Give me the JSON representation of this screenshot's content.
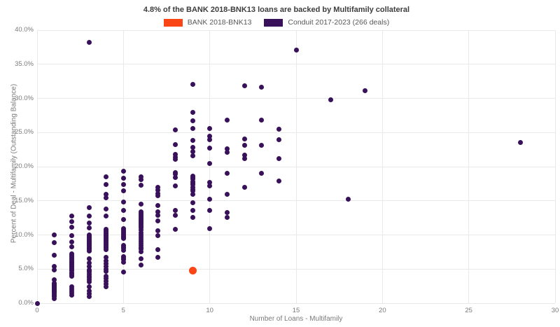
{
  "title": "4.8% of the BANK 2018-BNK13 loans are backed by Multifamily collateral",
  "legend": {
    "items": [
      {
        "label": "BANK 2018-BNK13",
        "color": "#fa4616"
      },
      {
        "label": "Conduit 2017-2023 (266 deals)",
        "color": "#38115a"
      }
    ]
  },
  "axes": {
    "x": {
      "title": "Number of Loans - Multifamily"
    },
    "y": {
      "title": "Percent of Deal - Multifamily (Outstanding Balance)"
    }
  },
  "chart_data": {
    "type": "scatter",
    "xlabel": "Number of Loans - Multifamily",
    "ylabel": "Percent of Deal - Multifamily (Outstanding Balance)",
    "xlim": [
      0,
      30
    ],
    "ylim": [
      0,
      40
    ],
    "grid": true,
    "legend_position": "top-center",
    "x_ticks": [
      0,
      5,
      10,
      15,
      20,
      25,
      30
    ],
    "y_ticks": [
      {
        "value": 0,
        "label": "0.0%"
      },
      {
        "value": 5,
        "label": "5.0%"
      },
      {
        "value": 10,
        "label": "10.0%"
      },
      {
        "value": 15,
        "label": "15.0%"
      },
      {
        "value": 20,
        "label": "20.0%"
      },
      {
        "value": 25,
        "label": "25.0%"
      },
      {
        "value": 30,
        "label": "30.0%"
      },
      {
        "value": 35,
        "label": "35.0%"
      },
      {
        "value": 40,
        "label": "40.0%"
      }
    ],
    "series": [
      {
        "name": "Conduit 2017-2023 (266 deals)",
        "color": "#38115a",
        "marker": "circle-small",
        "points": [
          [
            0,
            0.0
          ],
          [
            1,
            10.0
          ],
          [
            1,
            8.9
          ],
          [
            1,
            7.0
          ],
          [
            1,
            5.4
          ],
          [
            1,
            4.9
          ],
          [
            1,
            3.4
          ],
          [
            1,
            2.9
          ],
          [
            1,
            2.8
          ],
          [
            1,
            2.7
          ],
          [
            1,
            2.6
          ],
          [
            1,
            2.5
          ],
          [
            1,
            2.4
          ],
          [
            1,
            2.3
          ],
          [
            1,
            2.2
          ],
          [
            1,
            2.1
          ],
          [
            1,
            2.0
          ],
          [
            1,
            1.9
          ],
          [
            1,
            1.8
          ],
          [
            1,
            1.7
          ],
          [
            1,
            1.6
          ],
          [
            1,
            1.5
          ],
          [
            1,
            1.3
          ],
          [
            1,
            1.1
          ],
          [
            1,
            1.0
          ],
          [
            1,
            0.7
          ],
          [
            2,
            12.8
          ],
          [
            2,
            11.9
          ],
          [
            2,
            11.1
          ],
          [
            2,
            9.9
          ],
          [
            2,
            9.0
          ],
          [
            2,
            8.3
          ],
          [
            2,
            7.2
          ],
          [
            2,
            7.0
          ],
          [
            2,
            6.8
          ],
          [
            2,
            6.6
          ],
          [
            2,
            6.4
          ],
          [
            2,
            6.2
          ],
          [
            2,
            6.0
          ],
          [
            2,
            5.9
          ],
          [
            2,
            5.7
          ],
          [
            2,
            5.6
          ],
          [
            2,
            5.4
          ],
          [
            2,
            5.3
          ],
          [
            2,
            5.1
          ],
          [
            2,
            4.9
          ],
          [
            2,
            4.8
          ],
          [
            2,
            4.5
          ],
          [
            2,
            4.4
          ],
          [
            2,
            4.2
          ],
          [
            2,
            3.9
          ],
          [
            2,
            2.4
          ],
          [
            2,
            2.1
          ],
          [
            2,
            1.8
          ],
          [
            2,
            1.5
          ],
          [
            2,
            1.2
          ],
          [
            3,
            38.2
          ],
          [
            3,
            14.0
          ],
          [
            3,
            12.8
          ],
          [
            3,
            11.7
          ],
          [
            3,
            11.0
          ],
          [
            3,
            10.0
          ],
          [
            3,
            9.9
          ],
          [
            3,
            9.7
          ],
          [
            3,
            9.55
          ],
          [
            3,
            9.4
          ],
          [
            3,
            9.25
          ],
          [
            3,
            9.1
          ],
          [
            3,
            8.95
          ],
          [
            3,
            8.8
          ],
          [
            3,
            8.65
          ],
          [
            3,
            8.5
          ],
          [
            3,
            8.35
          ],
          [
            3,
            8.2
          ],
          [
            3,
            8.05
          ],
          [
            3,
            7.9
          ],
          [
            3,
            7.75
          ],
          [
            3,
            7.6
          ],
          [
            3,
            6.5
          ],
          [
            3,
            5.9
          ],
          [
            3,
            5.4
          ],
          [
            3,
            4.9
          ],
          [
            3,
            4.75
          ],
          [
            3,
            4.6
          ],
          [
            3,
            4.3
          ],
          [
            3,
            4.0
          ],
          [
            3,
            3.7
          ],
          [
            3,
            3.4
          ],
          [
            3,
            3.1
          ],
          [
            3,
            2.4
          ],
          [
            3,
            1.8
          ],
          [
            3,
            1.4
          ],
          [
            3,
            1.0
          ],
          [
            4,
            18.5
          ],
          [
            4,
            17.4
          ],
          [
            4,
            15.9
          ],
          [
            4,
            15.4
          ],
          [
            4,
            13.8
          ],
          [
            4,
            12.8
          ],
          [
            4,
            10.8
          ],
          [
            4,
            10.65
          ],
          [
            4,
            10.5
          ],
          [
            4,
            10.35
          ],
          [
            4,
            10.2
          ],
          [
            4,
            10.05
          ],
          [
            4,
            9.9
          ],
          [
            4,
            9.75
          ],
          [
            4,
            9.6
          ],
          [
            4,
            9.45
          ],
          [
            4,
            9.3
          ],
          [
            4,
            9.15
          ],
          [
            4,
            9.0
          ],
          [
            4,
            8.85
          ],
          [
            4,
            8.7
          ],
          [
            4,
            8.55
          ],
          [
            4,
            8.4
          ],
          [
            4,
            8.25
          ],
          [
            4,
            8.1
          ],
          [
            4,
            7.8
          ],
          [
            4,
            6.7
          ],
          [
            4,
            6.2
          ],
          [
            4,
            5.8
          ],
          [
            4,
            5.4
          ],
          [
            4,
            5.0
          ],
          [
            4,
            4.7
          ],
          [
            4,
            4.0
          ],
          [
            4,
            3.6
          ],
          [
            4,
            3.2
          ],
          [
            4,
            2.8
          ],
          [
            4,
            2.4
          ],
          [
            5,
            19.3
          ],
          [
            5,
            18.3
          ],
          [
            5,
            17.4
          ],
          [
            5,
            16.5
          ],
          [
            5,
            14.8
          ],
          [
            5,
            13.6
          ],
          [
            5,
            12.3
          ],
          [
            5,
            10.9
          ],
          [
            5,
            10.7
          ],
          [
            5,
            10.5
          ],
          [
            5,
            10.3
          ],
          [
            5,
            10.1
          ],
          [
            5,
            9.9
          ],
          [
            5,
            9.7
          ],
          [
            5,
            9.6
          ],
          [
            5,
            9.5
          ],
          [
            5,
            8.5
          ],
          [
            5,
            8.3
          ],
          [
            5,
            8.1
          ],
          [
            5,
            7.7
          ],
          [
            5,
            6.8
          ],
          [
            5,
            6.6
          ],
          [
            5,
            6.4
          ],
          [
            5,
            6.0
          ],
          [
            5,
            4.6
          ],
          [
            6,
            18.5
          ],
          [
            6,
            18.1
          ],
          [
            6,
            17.3
          ],
          [
            6,
            14.5
          ],
          [
            6,
            13.4
          ],
          [
            6,
            13.2
          ],
          [
            6,
            13.0
          ],
          [
            6,
            12.8
          ],
          [
            6,
            12.6
          ],
          [
            6,
            12.4
          ],
          [
            6,
            12.2
          ],
          [
            6,
            12.0
          ],
          [
            6,
            11.8
          ],
          [
            6,
            11.6
          ],
          [
            6,
            11.4
          ],
          [
            6,
            11.2
          ],
          [
            6,
            11.0
          ],
          [
            6,
            10.7
          ],
          [
            6,
            10.3
          ],
          [
            6,
            10.0
          ],
          [
            6,
            9.7
          ],
          [
            6,
            9.4
          ],
          [
            6,
            9.1
          ],
          [
            6,
            8.8
          ],
          [
            6,
            8.5
          ],
          [
            6,
            8.2
          ],
          [
            6,
            7.9
          ],
          [
            6,
            7.5
          ],
          [
            6,
            6.5
          ],
          [
            6,
            5.6
          ],
          [
            7,
            17.0
          ],
          [
            7,
            16.6
          ],
          [
            7,
            16.1
          ],
          [
            7,
            15.7
          ],
          [
            7,
            14.3
          ],
          [
            7,
            13.4
          ],
          [
            7,
            12.9
          ],
          [
            7,
            12.1
          ],
          [
            7,
            10.6
          ],
          [
            7,
            9.9
          ],
          [
            7,
            7.8
          ],
          [
            7,
            6.7
          ],
          [
            8,
            25.4
          ],
          [
            8,
            23.2
          ],
          [
            8,
            21.8
          ],
          [
            8,
            21.4
          ],
          [
            8,
            21.1
          ],
          [
            8,
            19.1
          ],
          [
            8,
            18.9
          ],
          [
            8,
            18.4
          ],
          [
            8,
            17.2
          ],
          [
            8,
            13.6
          ],
          [
            8,
            12.9
          ],
          [
            8,
            10.8
          ],
          [
            9,
            32.1
          ],
          [
            9,
            27.9
          ],
          [
            9,
            26.7
          ],
          [
            9,
            25.6
          ],
          [
            9,
            23.8
          ],
          [
            9,
            22.8
          ],
          [
            9,
            22.2
          ],
          [
            9,
            21.6
          ],
          [
            9,
            18.6
          ],
          [
            9,
            18.4
          ],
          [
            9,
            18.2
          ],
          [
            9,
            17.8
          ],
          [
            9,
            17.6
          ],
          [
            9,
            17.4
          ],
          [
            9,
            17.0
          ],
          [
            9,
            16.7
          ],
          [
            9,
            16.5
          ],
          [
            9,
            16.0
          ],
          [
            9,
            14.7
          ],
          [
            9,
            13.6
          ],
          [
            9,
            12.6
          ],
          [
            10,
            25.6
          ],
          [
            10,
            24.5
          ],
          [
            10,
            24.0
          ],
          [
            10,
            22.7
          ],
          [
            10,
            20.5
          ],
          [
            10,
            17.7
          ],
          [
            10,
            17.2
          ],
          [
            10,
            15.2
          ],
          [
            10,
            13.6
          ],
          [
            10,
            10.9
          ],
          [
            11,
            26.8
          ],
          [
            11,
            22.6
          ],
          [
            11,
            22.1
          ],
          [
            11,
            19.0
          ],
          [
            11,
            15.9
          ],
          [
            11,
            13.3
          ],
          [
            11,
            12.6
          ],
          [
            12,
            31.8
          ],
          [
            12,
            24.1
          ],
          [
            12,
            23.1
          ],
          [
            12,
            21.7
          ],
          [
            12,
            21.2
          ],
          [
            12,
            17.0
          ],
          [
            13,
            31.6
          ],
          [
            13,
            26.8
          ],
          [
            13,
            23.1
          ],
          [
            13,
            19.0
          ],
          [
            14,
            25.5
          ],
          [
            14,
            23.9
          ],
          [
            14,
            21.2
          ],
          [
            14,
            17.9
          ],
          [
            15,
            37.1
          ],
          [
            17,
            29.8
          ],
          [
            18,
            15.2
          ],
          [
            19,
            31.1
          ],
          [
            28,
            23.5
          ]
        ]
      },
      {
        "name": "BANK 2018-BNK13",
        "color": "#fa4616",
        "marker": "circle-large",
        "points": [
          [
            9,
            4.8
          ]
        ]
      }
    ]
  }
}
